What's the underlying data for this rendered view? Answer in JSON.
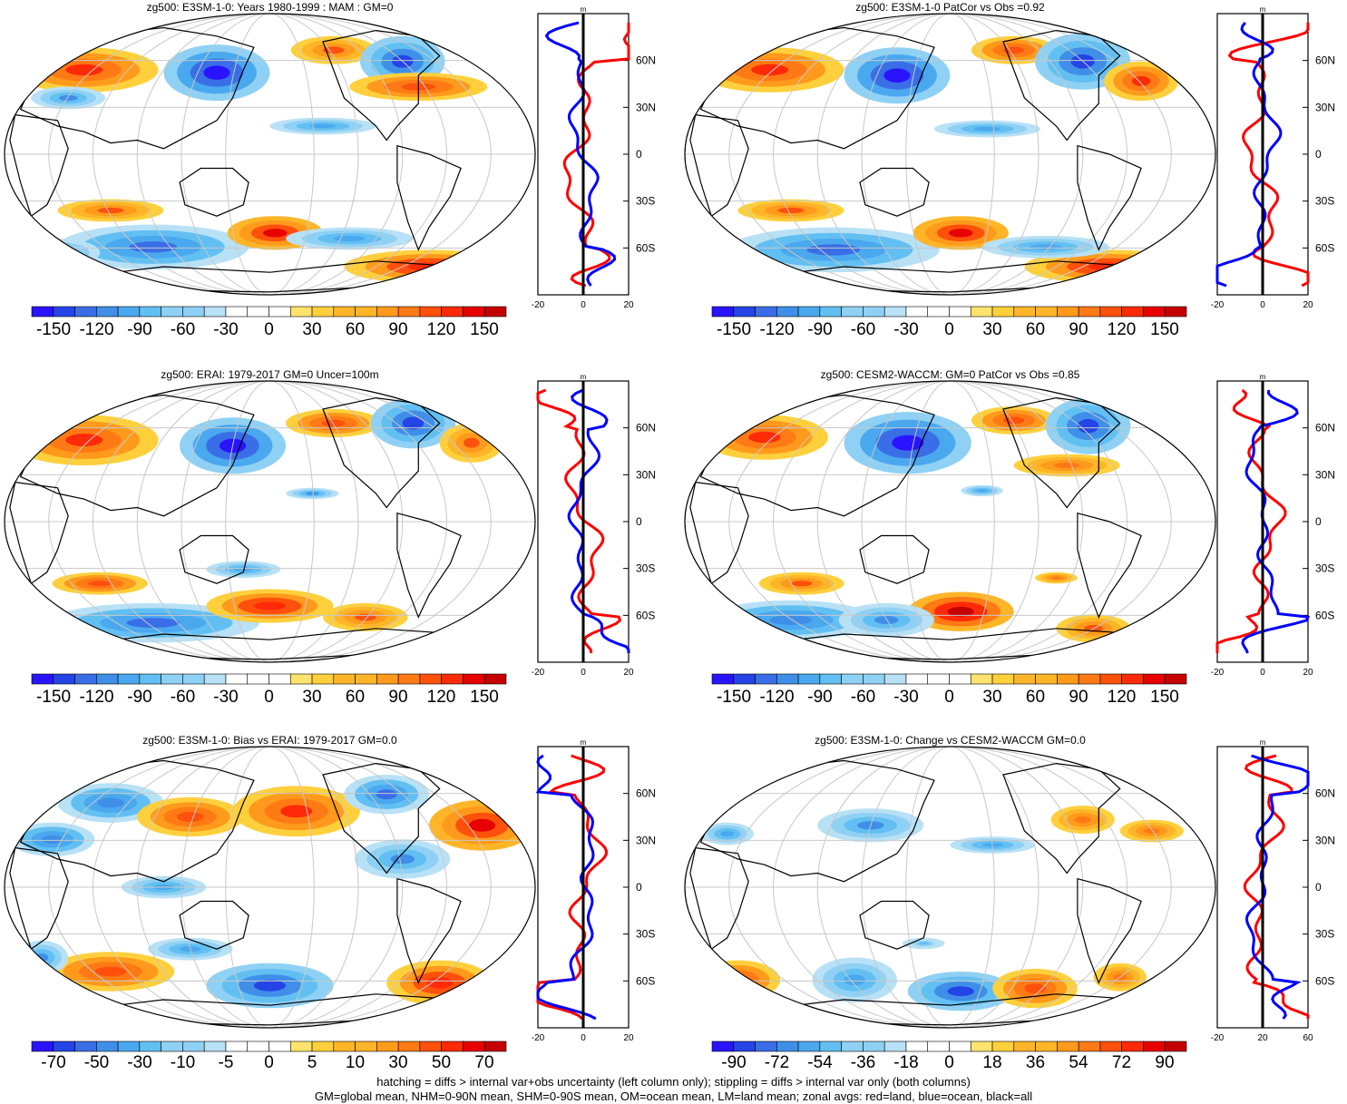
{
  "palettes": {
    "diverging": [
      "#2a14ff",
      "#2444e6",
      "#3a6ee6",
      "#3f8fe8",
      "#4aa8ef",
      "#62bff2",
      "#8fd1f4",
      "#b8e1f6",
      "#ffffff",
      "#ffffff",
      "#fff3a8",
      "#ffe36c",
      "#ffd03c",
      "#ffb528",
      "#ff9a1c",
      "#ff7a14",
      "#ff500c",
      "#ff2a08",
      "#e60000",
      "#c40000"
    ]
  },
  "colors": {
    "land_line": "#ff0000",
    "ocean_line": "#0000ff",
    "all_line": "#000000",
    "grid": "#c8c8c8",
    "coast": "#000000"
  },
  "profile_units": "m",
  "lat_labels": [
    "60N",
    "30N",
    "0",
    "30S",
    "60S"
  ],
  "panels": [
    {
      "id": "p1",
      "title": "zg500: E3SM-1-0: Years 1980-1999 : MAM : GM=0",
      "colorbar_labels": [
        "-150",
        "-120",
        "-90",
        "-60",
        "-30",
        "0",
        "30",
        "60",
        "90",
        "120",
        "150"
      ],
      "profile_ticks": [
        "-20",
        "0",
        "20"
      ]
    },
    {
      "id": "p2",
      "title": "zg500: E3SM-1-0 PatCor vs Obs =0.92",
      "colorbar_labels": [
        "-150",
        "-120",
        "-90",
        "-60",
        "-30",
        "0",
        "30",
        "60",
        "90",
        "120",
        "150"
      ],
      "profile_ticks": [
        "-20",
        "0",
        "20"
      ]
    },
    {
      "id": "p3",
      "title": "zg500: ERAI: 1979-2017 GM=0 Uncer=100m",
      "colorbar_labels": [
        "-150",
        "-120",
        "-90",
        "-60",
        "-30",
        "0",
        "30",
        "60",
        "90",
        "120",
        "150"
      ],
      "profile_ticks": [
        "-20",
        "0",
        "20"
      ]
    },
    {
      "id": "p4",
      "title": "zg500: CESM2-WACCM: GM=0 PatCor vs Obs =0.85",
      "colorbar_labels": [
        "-150",
        "-120",
        "-90",
        "-60",
        "-30",
        "0",
        "30",
        "60",
        "90",
        "120",
        "150"
      ],
      "profile_ticks": [
        "-20",
        "0",
        "20"
      ]
    },
    {
      "id": "p5",
      "title": "zg500: E3SM-1-0: Bias vs ERAI: 1979-2017 GM=0.0",
      "colorbar_labels": [
        "-70",
        "-50",
        "-30",
        "-10",
        "-5",
        "0",
        "5",
        "10",
        "30",
        "50",
        "70"
      ],
      "profile_ticks": [
        "-20",
        "0",
        "20"
      ]
    },
    {
      "id": "p6",
      "title": "zg500: E3SM-1-0: Change vs CESM2-WACCM GM=0.0",
      "colorbar_labels": [
        "-90",
        "-72",
        "-54",
        "-36",
        "-18",
        "0",
        "18",
        "36",
        "54",
        "72",
        "90"
      ],
      "profile_ticks": [
        "-20",
        "20",
        "60"
      ]
    }
  ],
  "footer": {
    "line1": "hatching = diffs > internal var+obs uncertainty (left column only); stippling = diffs > internal var only (both columns)",
    "line2": "GM=global mean, NHM=0-90N mean, SHM=0-90S mean, OM=ocean mean, LM=land mean; zonal avgs: red=land, blue=ocean, black=all"
  }
}
